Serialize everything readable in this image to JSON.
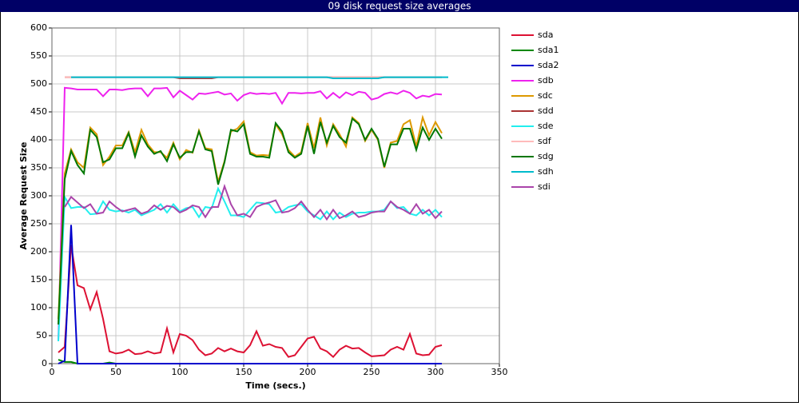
{
  "chart_data": {
    "type": "line",
    "title": "09 disk request size averages",
    "x_label": "Time (secs.)",
    "y_label": "Average Request Size",
    "xlim": [
      0,
      350
    ],
    "xticks": [
      0,
      50,
      100,
      150,
      200,
      250,
      300,
      350
    ],
    "ylim": [
      0,
      600
    ],
    "yticks": [
      0,
      50,
      100,
      150,
      200,
      250,
      300,
      350,
      400,
      450,
      500,
      550,
      600
    ],
    "grid": true,
    "legend": "right",
    "x": [
      5,
      10,
      15,
      20,
      25,
      30,
      35,
      40,
      45,
      50,
      55,
      60,
      65,
      70,
      75,
      80,
      85,
      90,
      95,
      100,
      105,
      110,
      115,
      120,
      125,
      130,
      135,
      140,
      145,
      150,
      155,
      160,
      165,
      170,
      175,
      180,
      185,
      190,
      195,
      200,
      205,
      210,
      215,
      220,
      225,
      230,
      235,
      240,
      245,
      250,
      255,
      260,
      265,
      270,
      275,
      280,
      285,
      290,
      295,
      300,
      305,
      310
    ],
    "series": [
      {
        "name": "sda",
        "color": "#dd1133",
        "values": [
          20,
          30,
          212,
          140,
          135,
          97,
          128,
          80,
          22,
          18,
          20,
          25,
          17,
          18,
          22,
          18,
          20,
          63,
          20,
          53,
          50,
          42,
          25,
          15,
          18,
          28,
          22,
          27,
          22,
          20,
          33,
          58,
          32,
          35,
          30,
          28,
          12,
          15,
          30,
          45,
          48,
          27,
          22,
          12,
          25,
          32,
          27,
          28,
          20,
          13,
          14,
          15,
          25,
          30,
          25,
          53,
          18,
          15,
          16,
          30,
          33,
          null
        ]
      },
      {
        "name": "sda1",
        "color": "#008800",
        "values": [
          7,
          3,
          3,
          0,
          0,
          0,
          0,
          0,
          2,
          0,
          0,
          0,
          0,
          0,
          0,
          0,
          0,
          0,
          0,
          0,
          0,
          0,
          0,
          0,
          0,
          0,
          0,
          0,
          0,
          0,
          0,
          0,
          0,
          0,
          0,
          0,
          0,
          0,
          0,
          0,
          0,
          0,
          0,
          0,
          0,
          0,
          0,
          0,
          0,
          0,
          0,
          0,
          0,
          0,
          0,
          0,
          0,
          0,
          0,
          0,
          0,
          null
        ]
      },
      {
        "name": "sda2",
        "color": "#0000cc",
        "values": [
          0,
          5,
          248,
          0,
          0,
          0,
          0,
          0,
          0,
          0,
          0,
          0,
          0,
          0,
          0,
          0,
          0,
          0,
          0,
          0,
          0,
          0,
          0,
          0,
          0,
          0,
          0,
          0,
          0,
          0,
          0,
          0,
          0,
          0,
          0,
          0,
          0,
          0,
          0,
          0,
          0,
          0,
          0,
          0,
          0,
          0,
          0,
          0,
          0,
          0,
          0,
          0,
          0,
          0,
          0,
          0,
          0,
          0,
          0,
          0,
          0,
          null
        ]
      },
      {
        "name": "sdb",
        "color": "#ee22ee",
        "values": [
          40,
          493,
          492,
          490,
          490,
          490,
          490,
          478,
          490,
          490,
          489,
          491,
          492,
          492,
          478,
          492,
          492,
          493,
          476,
          488,
          480,
          472,
          483,
          482,
          484,
          486,
          481,
          483,
          470,
          480,
          484,
          482,
          483,
          482,
          484,
          465,
          484,
          484,
          483,
          484,
          484,
          487,
          474,
          484,
          475,
          485,
          480,
          486,
          484,
          472,
          475,
          482,
          485,
          482,
          488,
          484,
          474,
          479,
          477,
          482,
          481,
          null
        ]
      },
      {
        "name": "sdc",
        "color": "#dd9900",
        "values": [
          80,
          340,
          383,
          360,
          350,
          422,
          410,
          355,
          370,
          390,
          390,
          414,
          378,
          418,
          392,
          378,
          378,
          368,
          395,
          365,
          382,
          377,
          417,
          385,
          383,
          325,
          362,
          415,
          420,
          433,
          378,
          372,
          373,
          372,
          428,
          410,
          382,
          370,
          378,
          430,
          385,
          440,
          390,
          428,
          410,
          388,
          440,
          430,
          398,
          418,
          400,
          350,
          395,
          398,
          428,
          435,
          388,
          440,
          408,
          432,
          412,
          null
        ]
      },
      {
        "name": "sdd",
        "color": "#aa3333",
        "values": [
          null,
          512,
          512,
          512,
          512,
          512,
          512,
          512,
          512,
          512,
          512,
          512,
          512,
          512,
          512,
          512,
          512,
          512,
          512,
          510,
          510,
          510,
          510,
          510,
          510,
          512,
          512,
          512,
          512,
          512,
          512,
          512,
          512,
          512,
          512,
          512,
          512,
          512,
          512,
          512,
          512,
          512,
          512,
          512,
          512,
          512,
          512,
          512,
          512,
          512,
          512,
          512,
          512,
          512,
          512,
          512,
          512,
          512,
          512,
          512,
          512,
          null
        ]
      },
      {
        "name": "sde",
        "color": "#22eeee",
        "values": [
          40,
          298,
          278,
          280,
          280,
          267,
          268,
          290,
          275,
          272,
          274,
          270,
          275,
          265,
          270,
          275,
          285,
          270,
          285,
          272,
          278,
          280,
          262,
          280,
          278,
          313,
          290,
          265,
          265,
          262,
          275,
          288,
          287,
          285,
          270,
          272,
          280,
          283,
          285,
          272,
          265,
          258,
          272,
          258,
          270,
          262,
          268,
          270,
          270,
          272,
          272,
          275,
          290,
          278,
          280,
          268,
          265,
          275,
          265,
          275,
          262,
          null
        ]
      },
      {
        "name": "sdf",
        "color": "#ffbbbb",
        "values": [
          null,
          512,
          512,
          512,
          512,
          512,
          512,
          512,
          512,
          512,
          512,
          512,
          512,
          512,
          512,
          512,
          512,
          512,
          512,
          512,
          512,
          512,
          512,
          512,
          512,
          512,
          512,
          512,
          512,
          512,
          512,
          512,
          512,
          512,
          512,
          512,
          512,
          512,
          512,
          512,
          512,
          512,
          512,
          512,
          512,
          512,
          512,
          512,
          512,
          512,
          512,
          512,
          512,
          512,
          512,
          512,
          512,
          512,
          512,
          512,
          512,
          null
        ]
      },
      {
        "name": "sdg",
        "color": "#007700",
        "values": [
          70,
          330,
          380,
          355,
          340,
          418,
          405,
          360,
          365,
          385,
          385,
          412,
          370,
          408,
          388,
          375,
          380,
          362,
          392,
          368,
          378,
          378,
          415,
          383,
          380,
          320,
          360,
          418,
          415,
          428,
          375,
          370,
          370,
          368,
          430,
          415,
          378,
          368,
          375,
          425,
          375,
          432,
          395,
          425,
          405,
          395,
          438,
          428,
          400,
          420,
          402,
          352,
          392,
          392,
          420,
          420,
          382,
          422,
          400,
          420,
          402,
          null
        ]
      },
      {
        "name": "sdh",
        "color": "#00bbcc",
        "values": [
          null,
          null,
          512,
          512,
          512,
          512,
          512,
          512,
          512,
          512,
          512,
          512,
          512,
          512,
          512,
          512,
          512,
          512,
          512,
          512,
          512,
          512,
          512,
          512,
          512,
          512,
          512,
          512,
          512,
          512,
          512,
          512,
          512,
          512,
          512,
          512,
          512,
          512,
          512,
          512,
          512,
          512,
          512,
          510,
          510,
          510,
          510,
          510,
          510,
          510,
          510,
          512,
          512,
          512,
          512,
          512,
          512,
          512,
          512,
          512,
          512,
          512
        ]
      },
      {
        "name": "sdi",
        "color": "#aa44aa",
        "values": [
          null,
          280,
          298,
          288,
          278,
          285,
          268,
          270,
          290,
          280,
          272,
          275,
          278,
          268,
          272,
          283,
          275,
          282,
          280,
          270,
          275,
          283,
          280,
          262,
          280,
          280,
          317,
          285,
          265,
          268,
          262,
          280,
          285,
          288,
          292,
          270,
          272,
          278,
          290,
          275,
          262,
          275,
          258,
          275,
          260,
          265,
          272,
          262,
          265,
          270,
          272,
          272,
          290,
          280,
          275,
          268,
          285,
          268,
          275,
          260,
          272,
          null
        ]
      }
    ]
  }
}
